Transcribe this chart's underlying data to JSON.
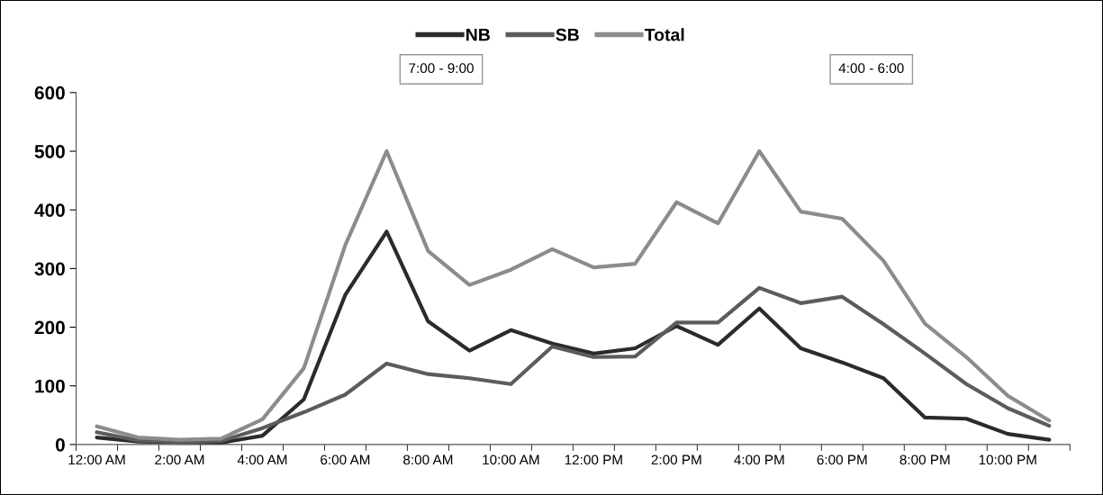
{
  "chart_data": {
    "type": "line",
    "categories": [
      "12:00 AM",
      null,
      "2:00 AM",
      null,
      "4:00 AM",
      null,
      "6:00 AM",
      null,
      "8:00 AM",
      null,
      "10:00 AM",
      null,
      "12:00 PM",
      null,
      "2:00 PM",
      null,
      "4:00 PM",
      null,
      "6:00 PM",
      null,
      "8:00 PM",
      null,
      "10:00 PM",
      null
    ],
    "series": [
      {
        "name": "NB",
        "color": "#2b2b2b",
        "values": [
          12,
          5,
          4,
          3,
          15,
          77,
          255,
          363,
          210,
          160,
          195,
          172,
          155,
          164,
          202,
          170,
          232,
          164,
          140,
          113,
          46,
          44,
          18,
          8
        ]
      },
      {
        "name": "SB",
        "color": "#5c5c5c",
        "values": [
          21,
          7,
          4,
          6,
          28,
          55,
          85,
          138,
          120,
          113,
          103,
          167,
          149,
          150,
          208,
          208,
          267,
          241,
          252,
          205,
          155,
          103,
          62,
          32
        ]
      },
      {
        "name": "Total",
        "color": "#8c8c8c",
        "values": [
          31,
          12,
          8,
          10,
          43,
          130,
          340,
          500,
          330,
          272,
          298,
          333,
          302,
          308,
          413,
          377,
          500,
          397,
          385,
          313,
          206,
          149,
          83,
          41
        ]
      }
    ],
    "ylim": [
      0,
      600
    ],
    "yticks": [
      0,
      100,
      200,
      300,
      400,
      500,
      600
    ],
    "grid": false,
    "legend": "top",
    "marker": "none",
    "line_style": "solid",
    "annotations": [
      "7:00 - 9:00",
      "4:00 - 6:00"
    ]
  }
}
